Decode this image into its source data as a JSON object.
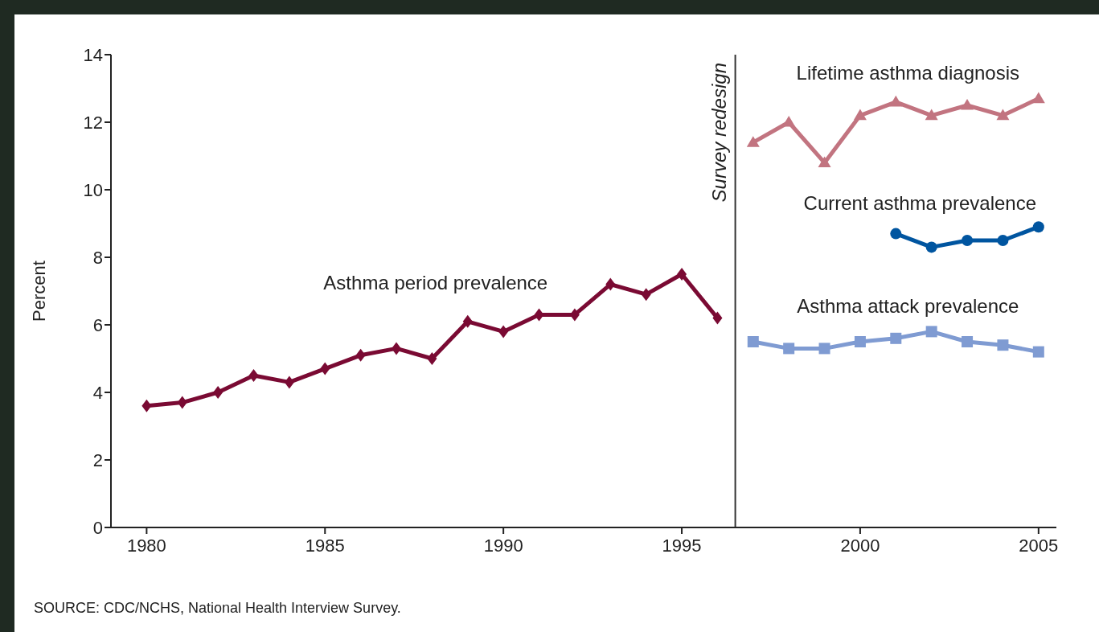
{
  "chart_data": {
    "type": "line",
    "ylabel": "Percent",
    "xlim": [
      1979,
      2005.5
    ],
    "xticks": [
      1980,
      1985,
      1990,
      1995,
      2000,
      2005
    ],
    "ylim": [
      0,
      14
    ],
    "yticks": [
      0,
      2,
      4,
      6,
      8,
      10,
      12,
      14
    ],
    "series": [
      {
        "name": "Asthma period prevalence",
        "color": "#7a0a33",
        "marker": "diamond",
        "x": [
          1980,
          1981,
          1982,
          1983,
          1984,
          1985,
          1986,
          1987,
          1988,
          1989,
          1990,
          1991,
          1992,
          1993,
          1994,
          1995,
          1996
        ],
        "values": [
          3.6,
          3.7,
          4.0,
          4.5,
          4.3,
          4.7,
          5.1,
          5.3,
          5.0,
          6.1,
          5.8,
          6.3,
          6.3,
          7.2,
          6.9,
          7.5,
          6.2
        ]
      },
      {
        "name": "Lifetime asthma diagnosis",
        "color": "#c27480",
        "marker": "triangle",
        "x": [
          1997,
          1998,
          1999,
          2000,
          2001,
          2002,
          2003,
          2004,
          2005
        ],
        "values": [
          11.4,
          12.0,
          10.8,
          12.2,
          12.6,
          12.2,
          12.5,
          12.2,
          12.7
        ]
      },
      {
        "name": "Current asthma prevalence",
        "color": "#0055a0",
        "marker": "circle",
        "x": [
          2001,
          2002,
          2003,
          2004,
          2005
        ],
        "values": [
          8.7,
          8.3,
          8.5,
          8.5,
          8.9
        ]
      },
      {
        "name": "Asthma attack prevalence",
        "color": "#7f9bd2",
        "marker": "square",
        "x": [
          1997,
          1998,
          1999,
          2000,
          2001,
          2002,
          2003,
          2004,
          2005
        ],
        "values": [
          5.5,
          5.3,
          5.3,
          5.5,
          5.6,
          5.8,
          5.5,
          5.4,
          5.2
        ]
      }
    ],
    "ref_lines": [
      {
        "axis": "x",
        "value": 1996.5,
        "label": "Survey redesign",
        "color": "#333333",
        "line_style": "solid"
      }
    ],
    "annotations": [
      "SOURCE: CDC/NCHS, National Health Interview Survey."
    ]
  }
}
